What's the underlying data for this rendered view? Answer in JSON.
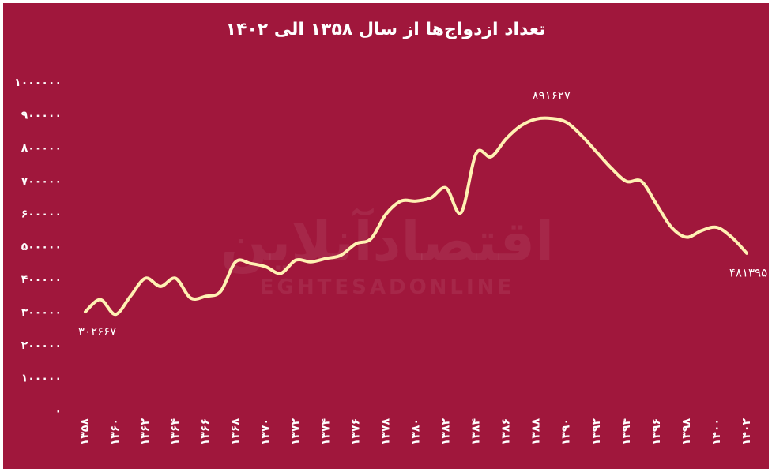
{
  "chart_data": {
    "type": "line",
    "title": "تعداد ازدواج‌ها از سال ۱۳۵۸ الی ۱۴۰۲",
    "watermark": [
      "اقتصادآنلاین",
      "EGHTESADONLINE"
    ],
    "x": [
      1358,
      1359,
      1360,
      1361,
      1362,
      1363,
      1364,
      1365,
      1366,
      1367,
      1368,
      1369,
      1370,
      1371,
      1372,
      1373,
      1374,
      1375,
      1376,
      1377,
      1378,
      1379,
      1380,
      1381,
      1382,
      1383,
      1384,
      1385,
      1386,
      1387,
      1388,
      1389,
      1390,
      1391,
      1392,
      1393,
      1394,
      1395,
      1396,
      1397,
      1398,
      1399,
      1400,
      1401,
      1402
    ],
    "series": [
      {
        "color": "#fff1b3",
        "values": [
          302667,
          340000,
          295000,
          350000,
          405000,
          380000,
          405000,
          345000,
          350000,
          365000,
          455000,
          450000,
          440000,
          420000,
          460000,
          455000,
          465000,
          475000,
          510000,
          525000,
          600000,
          640000,
          640000,
          650000,
          680000,
          605000,
          785000,
          775000,
          830000,
          870000,
          890000,
          891627,
          880000,
          840000,
          790000,
          740000,
          700000,
          700000,
          630000,
          560000,
          530000,
          550000,
          560000,
          530000,
          481395
        ],
        "value_labels": [
          "۳۰۲۶۶۷",
          null,
          null,
          null,
          null,
          null,
          null,
          null,
          null,
          null,
          null,
          null,
          null,
          null,
          null,
          null,
          null,
          null,
          null,
          null,
          null,
          null,
          null,
          null,
          null,
          null,
          null,
          null,
          null,
          null,
          null,
          "۸۹۱۶۲۷",
          null,
          null,
          null,
          null,
          null,
          null,
          null,
          null,
          null,
          null,
          null,
          null,
          "۴۸۱۳۹۵"
        ]
      }
    ],
    "xlim": [
      1358,
      1402
    ],
    "xticks": [
      {
        "value": 1358,
        "label": "۱۳۵۸"
      },
      {
        "value": 1360,
        "label": "۱۳۶۰"
      },
      {
        "value": 1362,
        "label": "۱۳۶۲"
      },
      {
        "value": 1364,
        "label": "۱۳۶۴"
      },
      {
        "value": 1366,
        "label": "۱۳۶۶"
      },
      {
        "value": 1368,
        "label": "۱۳۶۸"
      },
      {
        "value": 1370,
        "label": "۱۳۷۰"
      },
      {
        "value": 1372,
        "label": "۱۳۷۲"
      },
      {
        "value": 1374,
        "label": "۱۳۷۴"
      },
      {
        "value": 1376,
        "label": "۱۳۷۶"
      },
      {
        "value": 1378,
        "label": "۱۳۷۸"
      },
      {
        "value": 1380,
        "label": "۱۳۸۰"
      },
      {
        "value": 1382,
        "label": "۱۳۸۲"
      },
      {
        "value": 1384,
        "label": "۱۳۸۴"
      },
      {
        "value": 1386,
        "label": "۱۳۸۶"
      },
      {
        "value": 1388,
        "label": "۱۳۸۸"
      },
      {
        "value": 1390,
        "label": "۱۳۹۰"
      },
      {
        "value": 1392,
        "label": "۱۳۹۲"
      },
      {
        "value": 1394,
        "label": "۱۳۹۴"
      },
      {
        "value": 1396,
        "label": "۱۳۹۶"
      },
      {
        "value": 1398,
        "label": "۱۳۹۸"
      },
      {
        "value": 1400,
        "label": "۱۴۰۰"
      },
      {
        "value": 1402,
        "label": "۱۴۰۲"
      }
    ],
    "ylim": [
      0,
      1000000
    ],
    "yticks": [
      {
        "value": 0,
        "label": "۰"
      },
      {
        "value": 100000,
        "label": "۱۰۰۰۰۰"
      },
      {
        "value": 200000,
        "label": "۲۰۰۰۰۰"
      },
      {
        "value": 300000,
        "label": "۳۰۰۰۰۰"
      },
      {
        "value": 400000,
        "label": "۴۰۰۰۰۰"
      },
      {
        "value": 500000,
        "label": "۵۰۰۰۰۰"
      },
      {
        "value": 600000,
        "label": "۶۰۰۰۰۰"
      },
      {
        "value": 700000,
        "label": "۷۰۰۰۰۰"
      },
      {
        "value": 800000,
        "label": "۸۰۰۰۰۰"
      },
      {
        "value": 900000,
        "label": "۹۰۰۰۰۰"
      },
      {
        "value": 1000000,
        "label": "۱۰۰۰۰۰۰"
      }
    ],
    "background": "#a0173c",
    "grid": false
  }
}
